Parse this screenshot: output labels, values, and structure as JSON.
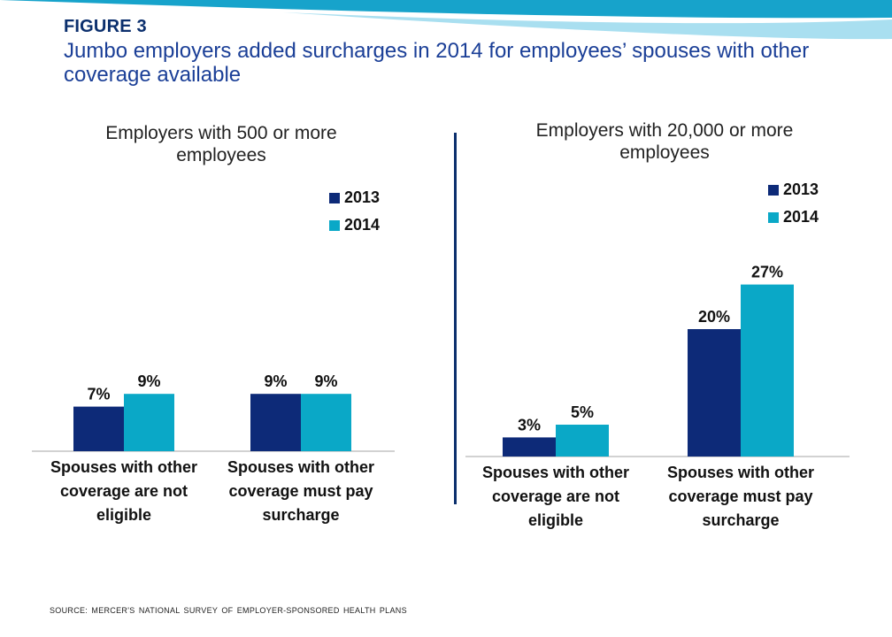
{
  "figure_label": "FIGURE 3",
  "title": "Jumbo employers added surcharges in 2014 for employees’ spouses with other coverage available",
  "source": "SOURCE: MERCER'S NATIONAL SURVEY OF EMPLOYER-SPONSORED HEALTH PLANS",
  "colors": {
    "header_band": "#17a3cb",
    "header_band_light": "#a9dff0",
    "series_2013": "#0d2a78",
    "series_2014": "#0aa8c7",
    "divider": "#0b2f6d"
  },
  "chart_data": [
    {
      "type": "bar",
      "title": "Employers with 500 or more employees",
      "categories": [
        "Spouses with other coverage are not eligible",
        "Spouses with other coverage must pay surcharge"
      ],
      "series": [
        {
          "name": "2013",
          "values": [
            7,
            9
          ],
          "labels": [
            "7%",
            "9%"
          ]
        },
        {
          "name": "2014",
          "values": [
            9,
            9
          ],
          "labels": [
            "9%",
            "9%"
          ]
        }
      ],
      "legend_position": "top-right",
      "grid": false
    },
    {
      "type": "bar",
      "title": "Employers with 20,000 or more employees",
      "categories": [
        "Spouses with other coverage are not eligible",
        "Spouses with other coverage must pay surcharge"
      ],
      "series": [
        {
          "name": "2013",
          "values": [
            3,
            20
          ],
          "labels": [
            "3%",
            "20%"
          ]
        },
        {
          "name": "2014",
          "values": [
            5,
            27
          ],
          "labels": [
            "5%",
            "27%"
          ]
        }
      ],
      "legend_position": "top-right",
      "grid": false
    }
  ]
}
